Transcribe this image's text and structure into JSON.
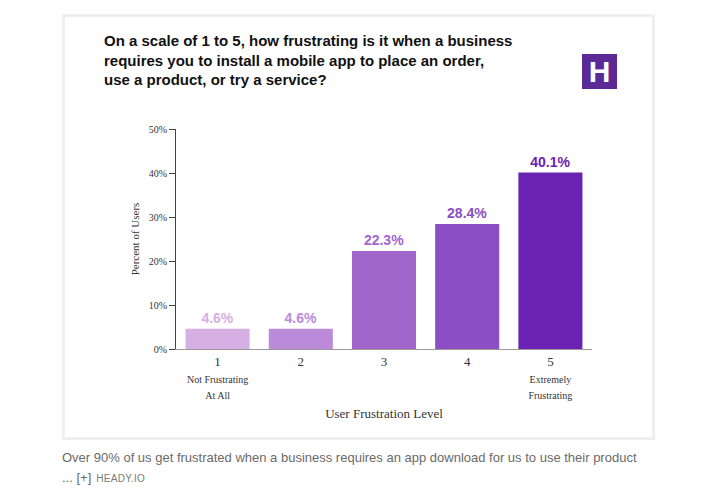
{
  "chart_data": {
    "type": "bar",
    "title": "On a scale of 1 to 5, how frustrating is it when a business\nrequires you to install a mobile app to place an order,\nuse a product, or try a service?",
    "x_label": "User Frustration Level",
    "y_label": "Percent of Users",
    "categories": [
      "1",
      "2",
      "3",
      "4",
      "5"
    ],
    "values": [
      4.6,
      4.6,
      22.3,
      28.4,
      40.1
    ],
    "value_labels": [
      "4.6%",
      "4.6%",
      "22.3%",
      "28.4%",
      "40.1%"
    ],
    "colors": [
      "#d6b0e4",
      "#bb8ad8",
      "#a066cc",
      "#8c4ec4",
      "#6b22b2"
    ],
    "data_labels": true,
    "grid": false,
    "ylim": [
      0,
      50
    ],
    "yticks": [
      {
        "value": 0,
        "label": "0%"
      },
      {
        "value": 10,
        "label": "10%"
      },
      {
        "value": 20,
        "label": "20%"
      },
      {
        "value": 30,
        "label": "30%"
      },
      {
        "value": 40,
        "label": "40%"
      },
      {
        "value": 50,
        "label": "50%"
      }
    ],
    "annotations": [
      {
        "category": "1",
        "text": "Not Frustrating\nAt All"
      },
      {
        "category": "5",
        "text": "Extremely\nFrustrating"
      }
    ]
  },
  "page": {
    "logo": "H",
    "caption": "Over 90% of us get frustrated when a business requires an app download for us to use their product ... [+]",
    "source": "HEADY.IO"
  }
}
